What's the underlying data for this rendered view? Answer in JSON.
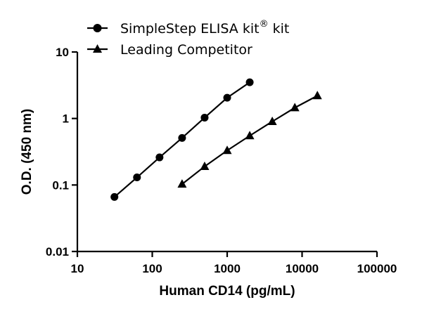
{
  "chart_data": {
    "type": "line",
    "xlabel": "Human CD14 (pg/mL)",
    "ylabel": "O.D. (450 nm)",
    "x_scale": "log",
    "y_scale": "log",
    "xlim": [
      10,
      100000
    ],
    "ylim": [
      0.01,
      10
    ],
    "x_ticks": [
      "10",
      "100",
      "1000",
      "10000",
      "100000"
    ],
    "y_ticks": [
      "0.01",
      "0.1",
      "1",
      "10"
    ],
    "grid": false,
    "legend_position": "top-left",
    "legend_registered_mark": "®",
    "series": [
      {
        "name": "SimpleStep ELISA kit",
        "marker": "circle",
        "color": "#000000",
        "x": [
          31.25,
          62.5,
          125,
          250,
          500,
          1000,
          2000
        ],
        "y": [
          0.066,
          0.13,
          0.26,
          0.51,
          1.03,
          2.05,
          3.5
        ]
      },
      {
        "name": "Leading Competitor",
        "marker": "triangle",
        "color": "#000000",
        "x": [
          250,
          500,
          1000,
          2000,
          4000,
          8000,
          16000
        ],
        "y": [
          0.103,
          0.19,
          0.33,
          0.55,
          0.9,
          1.45,
          2.2
        ]
      }
    ]
  }
}
